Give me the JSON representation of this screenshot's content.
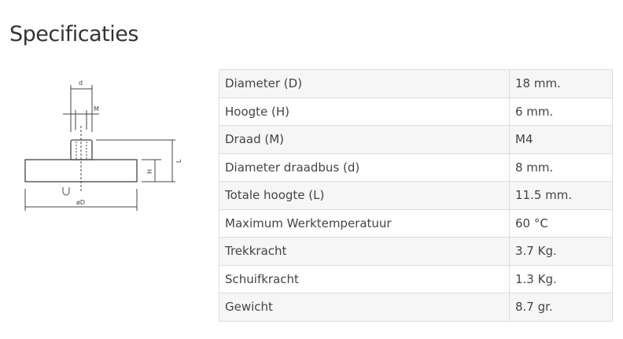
{
  "title": "Specificaties",
  "diagram": {
    "labels": {
      "d": "d",
      "M": "M",
      "L": "L",
      "H": "H",
      "D": "øD"
    }
  },
  "specs": [
    {
      "label": "Diameter (D)",
      "value": "18 mm."
    },
    {
      "label": "Hoogte (H)",
      "value": "6 mm."
    },
    {
      "label": "Draad (M)",
      "value": "M4"
    },
    {
      "label": "Diameter draadbus (d)",
      "value": "8 mm."
    },
    {
      "label": "Totale hoogte (L)",
      "value": "11.5 mm."
    },
    {
      "label": "Maximum Werktemperatuur",
      "value": "60 °C"
    },
    {
      "label": "Trekkracht",
      "value": "3.7 Kg."
    },
    {
      "label": "Schuifkracht",
      "value": "1.3 Kg."
    },
    {
      "label": "Gewicht",
      "value": "8.7 gr."
    }
  ]
}
